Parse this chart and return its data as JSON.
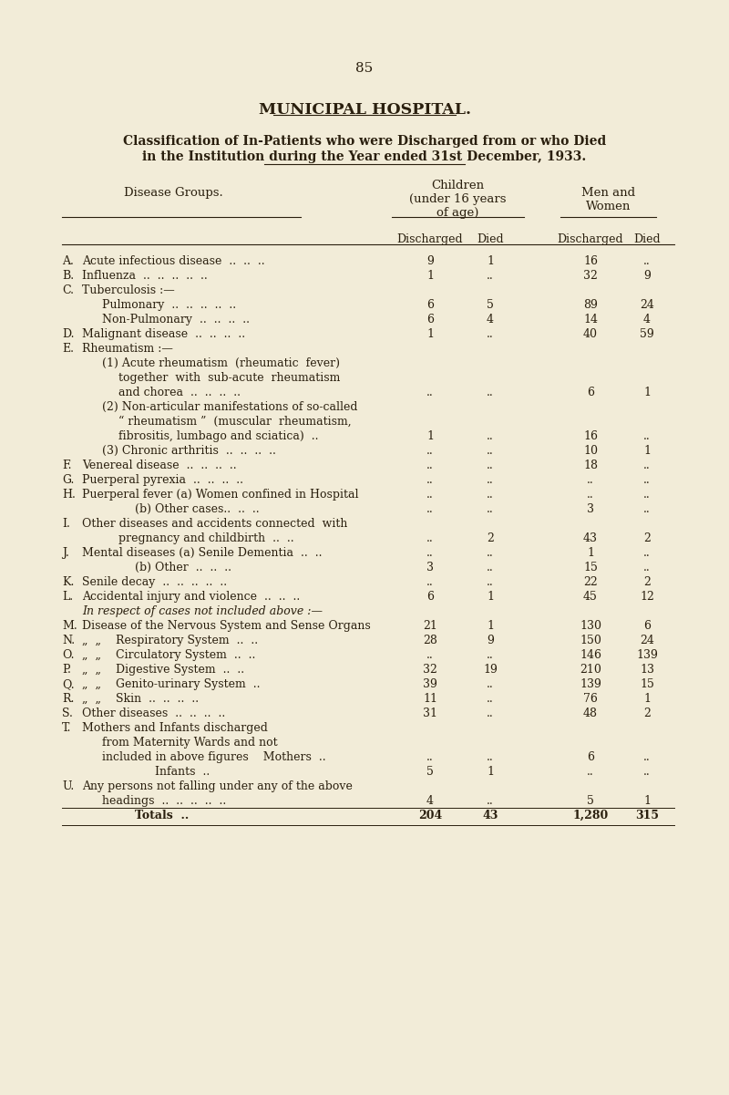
{
  "page_number": "85",
  "title": "MUNICIPAL HOSPITAL.",
  "subtitle1": "Classification of In-Patients who were Discharged from or who Died",
  "subtitle2": "in the Institution during the Year ended 31st December, 1933.",
  "bg_color": "#f2ecd8",
  "text_color": "#2a1f0e",
  "rows": [
    {
      "letter": "A.",
      "text": "Acute infectious disease  ..  ..  ..",
      "ind": 0,
      "c1": "9",
      "c2": "1",
      "c3": "16",
      "c4": ".."
    },
    {
      "letter": "B.",
      "text": "Influenza  ..  ..  ..  ..  ..",
      "ind": 0,
      "c1": "1",
      "c2": "..",
      "c3": "32",
      "c4": "9"
    },
    {
      "letter": "C.",
      "text": "Tuberculosis :—",
      "ind": 0,
      "c1": "",
      "c2": "",
      "c3": "",
      "c4": ""
    },
    {
      "letter": "",
      "text": "Pulmonary  ..  ..  ..  ..  ..",
      "ind": 1,
      "c1": "6",
      "c2": "5",
      "c3": "89",
      "c4": "24"
    },
    {
      "letter": "",
      "text": "Non-Pulmonary  ..  ..  ..  ..",
      "ind": 1,
      "c1": "6",
      "c2": "4",
      "c3": "14",
      "c4": "4"
    },
    {
      "letter": "D.",
      "text": "Malignant disease  ..  ..  ..  ..",
      "ind": 0,
      "c1": "1",
      "c2": "..",
      "c3": "40",
      "c4": "59"
    },
    {
      "letter": "E.",
      "text": "Rheumatism :—",
      "ind": 0,
      "c1": "",
      "c2": "",
      "c3": "",
      "c4": ""
    },
    {
      "letter": "",
      "text": "(1) Acute rheumatism  (rheumatic  fever)",
      "ind": 1,
      "c1": "",
      "c2": "",
      "c3": "",
      "c4": ""
    },
    {
      "letter": "",
      "text": "together  with  sub-acute  rheumatism",
      "ind": 2,
      "c1": "",
      "c2": "",
      "c3": "",
      "c4": ""
    },
    {
      "letter": "",
      "text": "and chorea  ..  ..  ..  ..",
      "ind": 2,
      "c1": "..",
      "c2": "..",
      "c3": "6",
      "c4": "1"
    },
    {
      "letter": "",
      "text": "(2) Non-articular manifestations of so-called",
      "ind": 1,
      "c1": "",
      "c2": "",
      "c3": "",
      "c4": ""
    },
    {
      "letter": "",
      "text": "“ rheumatism ”  (muscular  rheumatism,",
      "ind": 2,
      "c1": "",
      "c2": "",
      "c3": "",
      "c4": ""
    },
    {
      "letter": "",
      "text": "fibrositis, lumbago and sciatica)  ..",
      "ind": 2,
      "c1": "1",
      "c2": "..",
      "c3": "16",
      "c4": ".."
    },
    {
      "letter": "",
      "text": "(3) Chronic arthritis  ..  ..  ..  ..",
      "ind": 1,
      "c1": "..",
      "c2": "..",
      "c3": "10",
      "c4": "1"
    },
    {
      "letter": "F.",
      "text": "Venereal disease  ..  ..  ..  ..",
      "ind": 0,
      "c1": "..",
      "c2": "..",
      "c3": "18",
      "c4": ".."
    },
    {
      "letter": "G.",
      "text": "Puerperal pyrexia  ..  ..  ..  ..",
      "ind": 0,
      "c1": "..",
      "c2": "..",
      "c3": "..",
      "c4": ".."
    },
    {
      "letter": "H.",
      "text": "Puerperal fever (a) Women confined in Hospital",
      "ind": 0,
      "c1": "..",
      "c2": "..",
      "c3": "..",
      "c4": ".."
    },
    {
      "letter": "",
      "text": "(b) Other cases..  ..  ..",
      "ind": 3,
      "c1": "..",
      "c2": "..",
      "c3": "3",
      "c4": ".."
    },
    {
      "letter": "I.",
      "text": "Other diseases and accidents connected  with",
      "ind": 0,
      "c1": "",
      "c2": "",
      "c3": "",
      "c4": ""
    },
    {
      "letter": "",
      "text": "pregnancy and childbirth  ..  ..",
      "ind": 2,
      "c1": "..",
      "c2": "2",
      "c3": "43",
      "c4": "2"
    },
    {
      "letter": "J.",
      "text": "Mental diseases (a) Senile Dementia  ..  ..",
      "ind": 0,
      "c1": "..",
      "c2": "..",
      "c3": "1",
      "c4": ".."
    },
    {
      "letter": "",
      "text": "(b) Other  ..  ..  ..",
      "ind": 3,
      "c1": "3",
      "c2": "..",
      "c3": "15",
      "c4": ".."
    },
    {
      "letter": "K.",
      "text": "Senile decay  ..  ..  ..  ..  ..",
      "ind": 0,
      "c1": "..",
      "c2": "..",
      "c3": "22",
      "c4": "2"
    },
    {
      "letter": "L.",
      "text": "Accidental injury and violence  ..  ..  ..",
      "ind": 0,
      "c1": "6",
      "c2": "1",
      "c3": "45",
      "c4": "12"
    },
    {
      "letter": "",
      "text": "In respect of cases not included above :—",
      "ind": 0,
      "c1": "",
      "c2": "",
      "c3": "",
      "c4": "",
      "italic": true
    },
    {
      "letter": "M.",
      "text": "Disease of the Nervous System and Sense Organs",
      "ind": 0,
      "c1": "21",
      "c2": "1",
      "c3": "130",
      "c4": "6"
    },
    {
      "letter": "N.",
      "text": "„  „    Respiratory System  ..  ..",
      "ind": 0,
      "c1": "28",
      "c2": "9",
      "c3": "150",
      "c4": "24"
    },
    {
      "letter": "O.",
      "text": "„  „    Circulatory System  ..  ..",
      "ind": 0,
      "c1": "..",
      "c2": "..",
      "c3": "146",
      "c4": "139"
    },
    {
      "letter": "P.",
      "text": "„  „    Digestive System  ..  ..",
      "ind": 0,
      "c1": "32",
      "c2": "19",
      "c3": "210",
      "c4": "13"
    },
    {
      "letter": "Q.",
      "text": "„  „    Genito-urinary System  ..",
      "ind": 0,
      "c1": "39",
      "c2": "..",
      "c3": "139",
      "c4": "15"
    },
    {
      "letter": "R.",
      "text": "„  „    Skin  ..  ..  ..  ..",
      "ind": 0,
      "c1": "11",
      "c2": "..",
      "c3": "76",
      "c4": "1"
    },
    {
      "letter": "S.",
      "text": "Other diseases  ..  ..  ..  ..",
      "ind": 0,
      "c1": "31",
      "c2": "..",
      "c3": "48",
      "c4": "2"
    },
    {
      "letter": "T.",
      "text": "Mothers and Infants discharged",
      "ind": 0,
      "c1": "",
      "c2": "",
      "c3": "",
      "c4": ""
    },
    {
      "letter": "",
      "text": "from Maternity Wards and not",
      "ind": 1,
      "c1": "",
      "c2": "",
      "c3": "",
      "c4": ""
    },
    {
      "letter": "",
      "text": "included in above figures    Mothers  ..",
      "ind": 1,
      "c1": "..",
      "c2": "..",
      "c3": "6",
      "c4": ".."
    },
    {
      "letter": "",
      "text": "Infants  ..",
      "ind": 4,
      "c1": "5",
      "c2": "1",
      "c3": "..",
      "c4": ".."
    },
    {
      "letter": "U.",
      "text": "Any persons not falling under any of the above",
      "ind": 0,
      "c1": "",
      "c2": "",
      "c3": "",
      "c4": ""
    },
    {
      "letter": "",
      "text": "headings  ..  ..  ..  ..  ..",
      "ind": 1,
      "c1": "4",
      "c2": "..",
      "c3": "5",
      "c4": "1"
    },
    {
      "letter": "",
      "text": "Totals  ..",
      "ind": 3,
      "c1": "204",
      "c2": "43",
      "c3": "1,280",
      "c4": "315",
      "bold": true,
      "totals": true
    }
  ]
}
